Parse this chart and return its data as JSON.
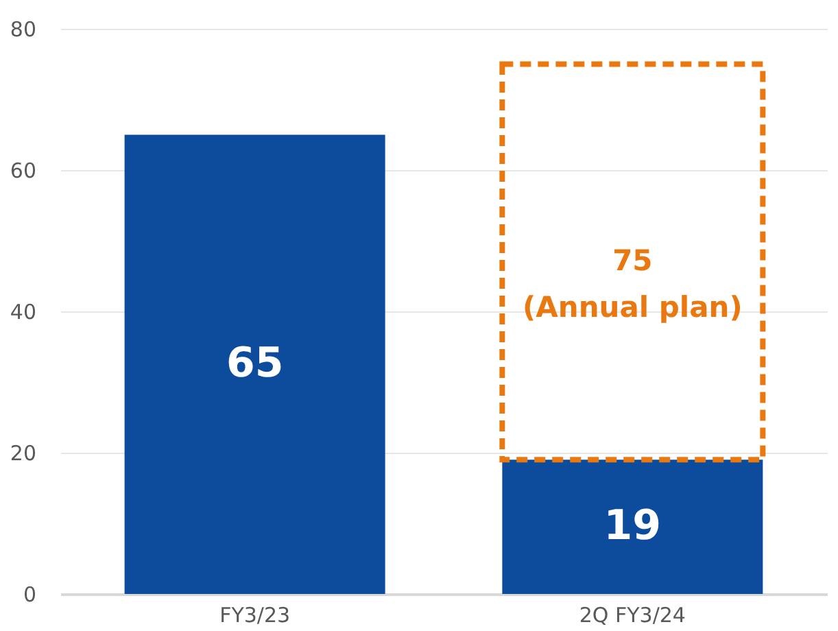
{
  "chart_data": {
    "type": "bar",
    "stacked": true,
    "categories": [
      "FY3/23",
      "2Q\nFY3/24"
    ],
    "series": [
      {
        "color": "#0d4c9c",
        "values": [
          65,
          19
        ],
        "value_labels": [
          "65",
          "19"
        ]
      },
      {
        "color": "#e8780f",
        "values": [
          null,
          56
        ],
        "line_style": "dashed"
      }
    ],
    "annotations": [
      "75\n(Annual plan)"
    ],
    "ylim": [
      0,
      80
    ],
    "yticks": [
      0,
      20,
      40,
      60,
      80
    ],
    "grid": "y"
  }
}
